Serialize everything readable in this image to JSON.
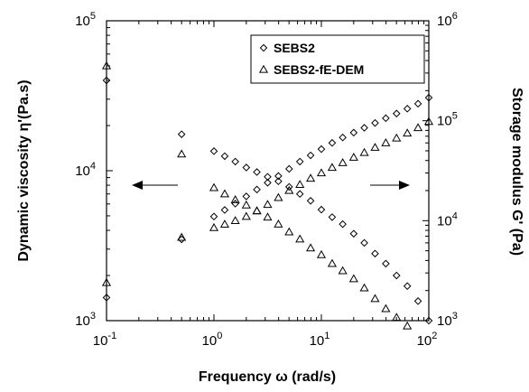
{
  "chart_data": {
    "type": "scatter",
    "title": "",
    "xlabel": "Frequency ω (rad/s)",
    "ylabel_left": "Dynamic viscosity  η'(Pa.s)",
    "ylabel_right": "Storage modulus G' (Pa)",
    "x_scale": "log",
    "y_left_scale": "log",
    "y_right_scale": "log",
    "xlim": [
      0.1,
      100
    ],
    "ylim_left": [
      1000,
      100000
    ],
    "ylim_right": [
      1000,
      1000000
    ],
    "x_ticks": [
      {
        "base": "10",
        "exp": "-1",
        "value": 0.1
      },
      {
        "base": "10",
        "exp": "0",
        "value": 1
      },
      {
        "base": "10",
        "exp": "1",
        "value": 10
      },
      {
        "base": "10",
        "exp": "2",
        "value": 100
      }
    ],
    "y_left_ticks": [
      {
        "base": "10",
        "exp": "3",
        "value": 1000
      },
      {
        "base": "10",
        "exp": "4",
        "value": 10000
      },
      {
        "base": "10",
        "exp": "5",
        "value": 100000
      }
    ],
    "y_right_ticks": [
      {
        "base": "10",
        "exp": "3",
        "value": 1000
      },
      {
        "base": "10",
        "exp": "4",
        "value": 10000
      },
      {
        "base": "10",
        "exp": "5",
        "value": 100000
      },
      {
        "base": "10",
        "exp": "6",
        "value": 1000000
      }
    ],
    "grid": false,
    "legend_position": "top-right",
    "series": [
      {
        "name": "SEBS2",
        "marker": "diamond",
        "axis": "left",
        "quantity": "dynamic viscosity",
        "x": [
          0.1,
          0.5,
          1.0,
          1.26,
          1.58,
          2.0,
          2.51,
          3.16,
          3.98,
          5.01,
          6.31,
          7.94,
          10.0,
          12.6,
          15.8,
          20.0,
          25.1,
          31.6,
          39.8,
          50.1,
          63.1,
          79.4,
          100
        ],
        "y": [
          40000,
          17500,
          13500,
          12500,
          11500,
          10500,
          9800,
          9100,
          8500,
          7800,
          7000,
          6300,
          5500,
          4900,
          4400,
          3800,
          3300,
          2800,
          2400,
          2000,
          1700,
          1350,
          1000
        ]
      },
      {
        "name": "SEBS2-fE-DEM",
        "marker": "triangle",
        "axis": "left",
        "quantity": "dynamic viscosity",
        "x": [
          0.1,
          0.5,
          1.0,
          1.26,
          1.58,
          2.0,
          2.51,
          3.16,
          3.98,
          5.01,
          6.31,
          7.94,
          10.0,
          12.6,
          15.8,
          20.0,
          25.1,
          31.6,
          39.8,
          50.1,
          63.1
        ],
        "y": [
          50000,
          12900,
          7700,
          7000,
          6400,
          5900,
          5400,
          4900,
          4400,
          3900,
          3500,
          3050,
          2750,
          2400,
          2150,
          1900,
          1650,
          1400,
          1200,
          1050,
          920
        ]
      },
      {
        "name": "SEBS2",
        "marker": "diamond",
        "axis": "right",
        "quantity": "storage modulus",
        "x": [
          0.1,
          0.5,
          1.0,
          1.26,
          1.58,
          2.0,
          2.51,
          3.16,
          3.98,
          5.01,
          6.31,
          7.94,
          10.0,
          12.6,
          15.8,
          20.0,
          25.1,
          31.6,
          39.8,
          50.1,
          63.1,
          79.4,
          100
        ],
        "y": [
          1700,
          6500,
          11000,
          12800,
          14800,
          17500,
          20500,
          24000,
          28000,
          33000,
          39000,
          45000,
          52000,
          60000,
          68000,
          76000,
          85000,
          95000,
          106000,
          118000,
          132000,
          148000,
          170000
        ]
      },
      {
        "name": "SEBS2-fE-DEM",
        "marker": "triangle",
        "axis": "right",
        "quantity": "storage modulus",
        "x": [
          0.1,
          0.5,
          1.0,
          1.26,
          1.58,
          2.0,
          2.51,
          3.16,
          3.98,
          5.01,
          6.31,
          7.94,
          10.0,
          12.6,
          15.8,
          20.0,
          25.1,
          31.6,
          39.8,
          50.1,
          63.1,
          79.4,
          100
        ],
        "y": [
          2400,
          6800,
          8500,
          9200,
          10000,
          11000,
          12500,
          14500,
          17000,
          20000,
          23000,
          26500,
          30000,
          34000,
          38000,
          43000,
          48000,
          54000,
          60000,
          67000,
          75000,
          85000,
          98000
        ]
      }
    ],
    "annotations": [
      {
        "type": "arrow",
        "direction": "left",
        "meaning": "diamond/triangle upper-left branch reads on left axis"
      },
      {
        "type": "arrow",
        "direction": "right",
        "meaning": "rising branch reads on right axis"
      }
    ]
  },
  "colors": {
    "ink": "#000000",
    "background": "#ffffff"
  }
}
